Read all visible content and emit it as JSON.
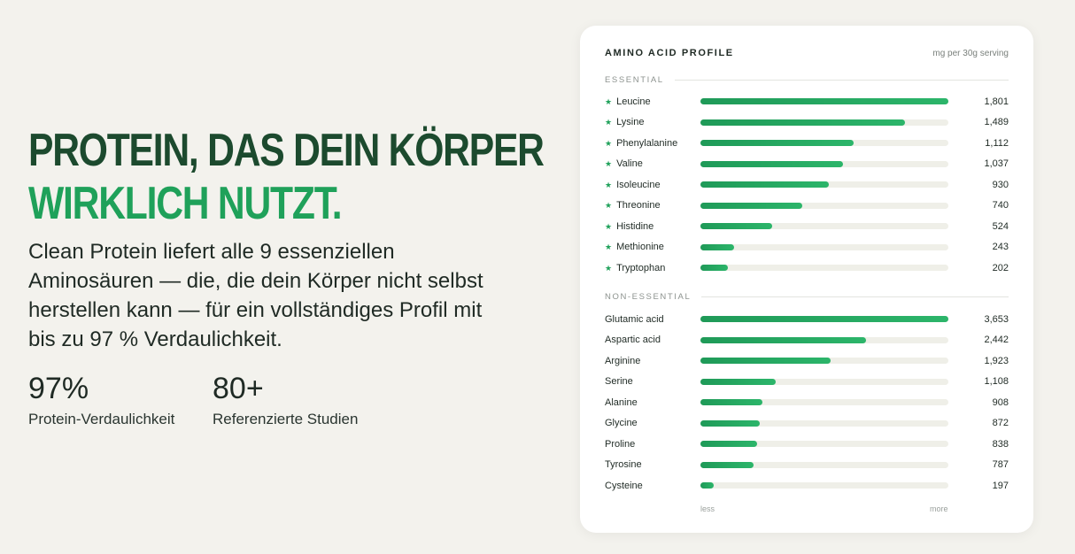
{
  "hero": {
    "headline_line1": "PROTEIN, DAS DEIN KÖRPER",
    "headline_line2": "WIRKLICH NUTZT.",
    "body": "Clean Protein liefert alle 9 essenziellen Aminosäuren — die, die dein Körper nicht selbst herstellen kann — für ein vollständiges Profil mit bis zu 97 % Verdaulichkeit.",
    "stats": [
      {
        "value": "97%",
        "label": "Protein-Verdaulichkeit"
      },
      {
        "value": "80+",
        "label": "Referenzierte Studien"
      }
    ]
  },
  "colors": {
    "accent_dark": "#1c4a2e",
    "accent_green": "#1fa15a",
    "track": "#efefe8"
  },
  "chart_data": {
    "type": "bar",
    "orientation": "horizontal",
    "title": "AMINO ACID PROFILE",
    "unit_label": "mg per 30g serving",
    "axis_min_label": "less",
    "axis_max_label": "more",
    "star_symbol": "★",
    "groups": [
      {
        "label": "ESSENTIAL",
        "starred": true,
        "items": [
          {
            "name": "Leucine",
            "value": 1801,
            "value_label": "1,801"
          },
          {
            "name": "Lysine",
            "value": 1489,
            "value_label": "1,489"
          },
          {
            "name": "Phenylalanine",
            "value": 1112,
            "value_label": "1,112"
          },
          {
            "name": "Valine",
            "value": 1037,
            "value_label": "1,037"
          },
          {
            "name": "Isoleucine",
            "value": 930,
            "value_label": "930"
          },
          {
            "name": "Threonine",
            "value": 740,
            "value_label": "740"
          },
          {
            "name": "Histidine",
            "value": 524,
            "value_label": "524"
          },
          {
            "name": "Methionine",
            "value": 243,
            "value_label": "243"
          },
          {
            "name": "Tryptophan",
            "value": 202,
            "value_label": "202"
          }
        ]
      },
      {
        "label": "NON-ESSENTIAL",
        "starred": false,
        "items": [
          {
            "name": "Glutamic acid",
            "value": 3653,
            "value_label": "3,653"
          },
          {
            "name": "Aspartic acid",
            "value": 2442,
            "value_label": "2,442"
          },
          {
            "name": "Arginine",
            "value": 1923,
            "value_label": "1,923"
          },
          {
            "name": "Serine",
            "value": 1108,
            "value_label": "1,108"
          },
          {
            "name": "Alanine",
            "value": 908,
            "value_label": "908"
          },
          {
            "name": "Glycine",
            "value": 872,
            "value_label": "872"
          },
          {
            "name": "Proline",
            "value": 838,
            "value_label": "838"
          },
          {
            "name": "Tyrosine",
            "value": 787,
            "value_label": "787"
          },
          {
            "name": "Cysteine",
            "value": 197,
            "value_label": "197"
          }
        ]
      }
    ]
  }
}
